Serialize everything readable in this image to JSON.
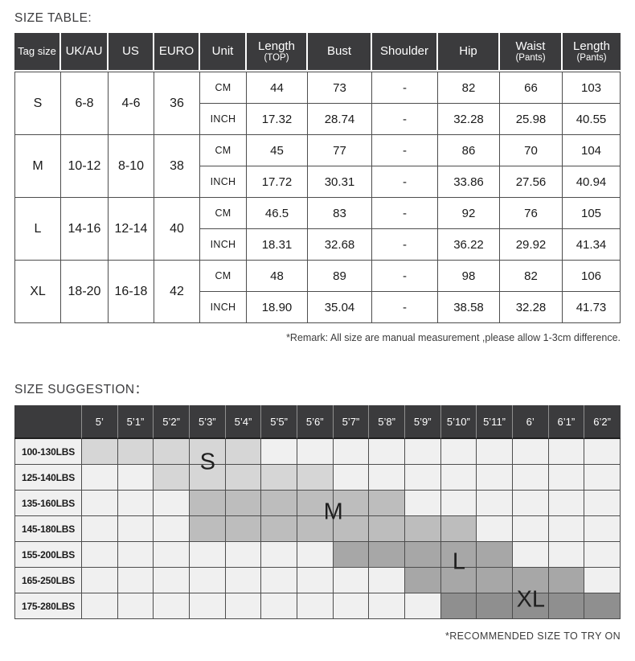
{
  "page": {
    "size_table_title": "SIZE TABLE:",
    "size_suggestion_title": "SIZE SUGGESTION：",
    "remark": "*Remark: All size are manual measurement ,please allow 1-3cm difference.",
    "recommendation_note": "*RECOMMENDED SIZE TO TRY ON"
  },
  "colors": {
    "header_bg": "#3b3b3d",
    "header_text": "#ffffff",
    "grid_line": "#4d4d4d",
    "cell_light": "#f0f0f0",
    "shade_s": "#d6d6d6",
    "shade_m": "#bdbdbd",
    "shade_l": "#a7a7a7",
    "shade_xl": "#8f8f8f",
    "text_dark": "#1a1a1a"
  },
  "size_table": {
    "headers": [
      {
        "label": "Tag size",
        "sub": ""
      },
      {
        "label": "UK/AU",
        "sub": ""
      },
      {
        "label": "US",
        "sub": ""
      },
      {
        "label": "EURO",
        "sub": ""
      },
      {
        "label": "Unit",
        "sub": ""
      },
      {
        "label": "Length",
        "sub": "(TOP)"
      },
      {
        "label": "Bust",
        "sub": ""
      },
      {
        "label": "Shoulder",
        "sub": ""
      },
      {
        "label": "Hip",
        "sub": ""
      },
      {
        "label": "Waist",
        "sub": "(Pants)"
      },
      {
        "label": "Length",
        "sub": "(Pants)"
      }
    ],
    "unit_labels": [
      "CM",
      "INCH"
    ],
    "measure_columns": [
      "Length (TOP)",
      "Bust",
      "Shoulder",
      "Hip",
      "Waist (Pants)",
      "Length (Pants)"
    ],
    "rows": [
      {
        "tag": "S",
        "uk_au": "6-8",
        "us": "4-6",
        "euro": "36",
        "cm": [
          "44",
          "73",
          "-",
          "82",
          "66",
          "103"
        ],
        "inch": [
          "17.32",
          "28.74",
          "-",
          "32.28",
          "25.98",
          "40.55"
        ]
      },
      {
        "tag": "M",
        "uk_au": "10-12",
        "us": "8-10",
        "euro": "38",
        "cm": [
          "45",
          "77",
          "-",
          "86",
          "70",
          "104"
        ],
        "inch": [
          "17.72",
          "30.31",
          "-",
          "33.86",
          "27.56",
          "40.94"
        ]
      },
      {
        "tag": "L",
        "uk_au": "14-16",
        "us": "12-14",
        "euro": "40",
        "cm": [
          "46.5",
          "83",
          "-",
          "92",
          "76",
          "105"
        ],
        "inch": [
          "18.31",
          "32.68",
          "-",
          "36.22",
          "29.92",
          "41.34"
        ]
      },
      {
        "tag": "XL",
        "uk_au": "18-20",
        "us": "16-18",
        "euro": "42",
        "cm": [
          "48",
          "89",
          "-",
          "98",
          "82",
          "106"
        ],
        "inch": [
          "18.90",
          "35.04",
          "-",
          "38.58",
          "32.28",
          "41.73"
        ]
      }
    ]
  },
  "size_suggestion": {
    "heights": [
      "5’",
      "5’1”",
      "5’2”",
      "5’3”",
      "5’4”",
      "5’5”",
      "5’6”",
      "5’7”",
      "5’8”",
      "5’9”",
      "5’10”",
      "5’11”",
      "6’",
      "6’1”",
      "6’2”"
    ],
    "rows": [
      {
        "weight": "100-130LBS",
        "start": 0,
        "end": 4,
        "shade": "s"
      },
      {
        "weight": "125-140LBS",
        "start": 2,
        "end": 6,
        "shade": "s"
      },
      {
        "weight": "135-160LBS",
        "start": 3,
        "end": 8,
        "shade": "m"
      },
      {
        "weight": "145-180LBS",
        "start": 3,
        "end": 10,
        "shade": "m"
      },
      {
        "weight": "155-200LBS",
        "start": 7,
        "end": 11,
        "shade": "l"
      },
      {
        "weight": "165-250LBS",
        "start": 9,
        "end": 13,
        "shade": "l"
      },
      {
        "weight": "175-280LBS",
        "start": 10,
        "end": 14,
        "shade": "xl"
      }
    ],
    "labels": [
      {
        "text": "S",
        "col": 3.5,
        "row": 1
      },
      {
        "text": "M",
        "col": 7,
        "row": 3
      },
      {
        "text": "L",
        "col": 10.5,
        "row": 5
      },
      {
        "text": "XL",
        "col": 12.5,
        "row": 6.5
      }
    ]
  }
}
